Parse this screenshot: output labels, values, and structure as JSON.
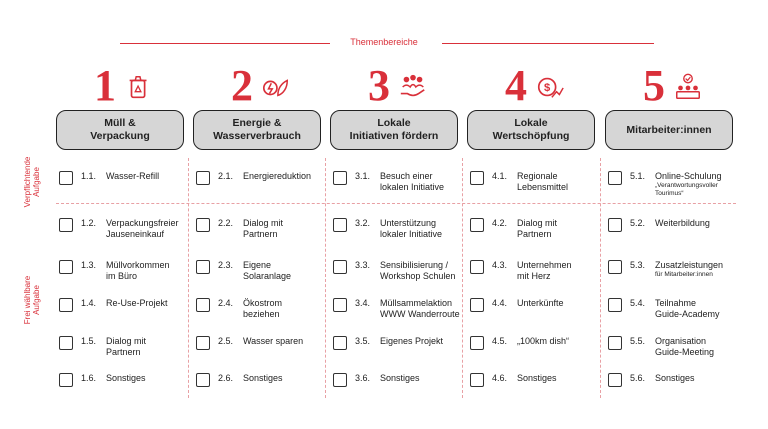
{
  "header": {
    "title": "Themenbereiche"
  },
  "side_labels": {
    "mandatory": "Verpflichtende\nAufgabe",
    "optional": "Frei wählbare\nAufgabe"
  },
  "accent_color": "#d9303a",
  "columns": [
    {
      "number": "1",
      "icon": "recycle-bin-icon",
      "title": "Müll &\nVerpackung",
      "items": [
        {
          "num": "1.1.",
          "label": "Wasser-Refill"
        },
        {
          "num": "1.2.",
          "label": "Verpackungsfreier\nJauseneinkauf"
        },
        {
          "num": "1.3.",
          "label": "Müllvorkommen\nim Büro"
        },
        {
          "num": "1.4.",
          "label": "Re-Use-Projekt"
        },
        {
          "num": "1.5.",
          "label": "Dialog mit\nPartnern"
        },
        {
          "num": "1.6.",
          "label": "Sonstiges"
        }
      ]
    },
    {
      "number": "2",
      "icon": "energy-leaf-icon",
      "title": "Energie &\nWasserverbrauch",
      "items": [
        {
          "num": "2.1.",
          "label": "Energiereduktion"
        },
        {
          "num": "2.2.",
          "label": "Dialog mit\nPartnern"
        },
        {
          "num": "2.3.",
          "label": "Eigene\nSolaranlage"
        },
        {
          "num": "2.4.",
          "label": "Ökostrom\nbeziehen"
        },
        {
          "num": "2.5.",
          "label": "Wasser sparen"
        },
        {
          "num": "2.6.",
          "label": "Sonstiges"
        }
      ]
    },
    {
      "number": "3",
      "icon": "community-hand-icon",
      "title": "Lokale\nInitiativen fördern",
      "items": [
        {
          "num": "3.1.",
          "label": "Besuch einer\nlokalen Initiative"
        },
        {
          "num": "3.2.",
          "label": "Unterstützung\nlokaler Initiative"
        },
        {
          "num": "3.3.",
          "label": "Sensibilisierung /\nWorkshop Schulen"
        },
        {
          "num": "3.4.",
          "label": "Müllsammelaktion\nWWW Wanderroute"
        },
        {
          "num": "3.5.",
          "label": "Eigenes Projekt"
        },
        {
          "num": "3.6.",
          "label": "Sonstiges"
        }
      ]
    },
    {
      "number": "4",
      "icon": "dollar-growth-icon",
      "title": "Lokale\nWertschöpfung",
      "items": [
        {
          "num": "4.1.",
          "label": "Regionale\nLebensmittel"
        },
        {
          "num": "4.2.",
          "label": "Dialog mit\nPartnern"
        },
        {
          "num": "4.3.",
          "label": "Unternehmen\nmit Herz"
        },
        {
          "num": "4.4.",
          "label": "Unterkünfte"
        },
        {
          "num": "4.5.",
          "label": "„100km dish“"
        },
        {
          "num": "4.6.",
          "label": "Sonstiges"
        }
      ]
    },
    {
      "number": "5",
      "icon": "team-check-icon",
      "title": "Mitarbeiter:innen",
      "items": [
        {
          "num": "5.1.",
          "label": "Online-Schulung",
          "sub": "„Verantwortungsvoller\nTourimus“"
        },
        {
          "num": "5.2.",
          "label": "Weiterbildung"
        },
        {
          "num": "5.3.",
          "label": "Zusatzleistungen",
          "sub": "für Mitarbeiter:innen"
        },
        {
          "num": "5.4.",
          "label": "Teilnahme\nGuide-Academy"
        },
        {
          "num": "5.5.",
          "label": "Organisation\nGuide-Meeting"
        },
        {
          "num": "5.6.",
          "label": "Sonstiges"
        }
      ]
    }
  ]
}
